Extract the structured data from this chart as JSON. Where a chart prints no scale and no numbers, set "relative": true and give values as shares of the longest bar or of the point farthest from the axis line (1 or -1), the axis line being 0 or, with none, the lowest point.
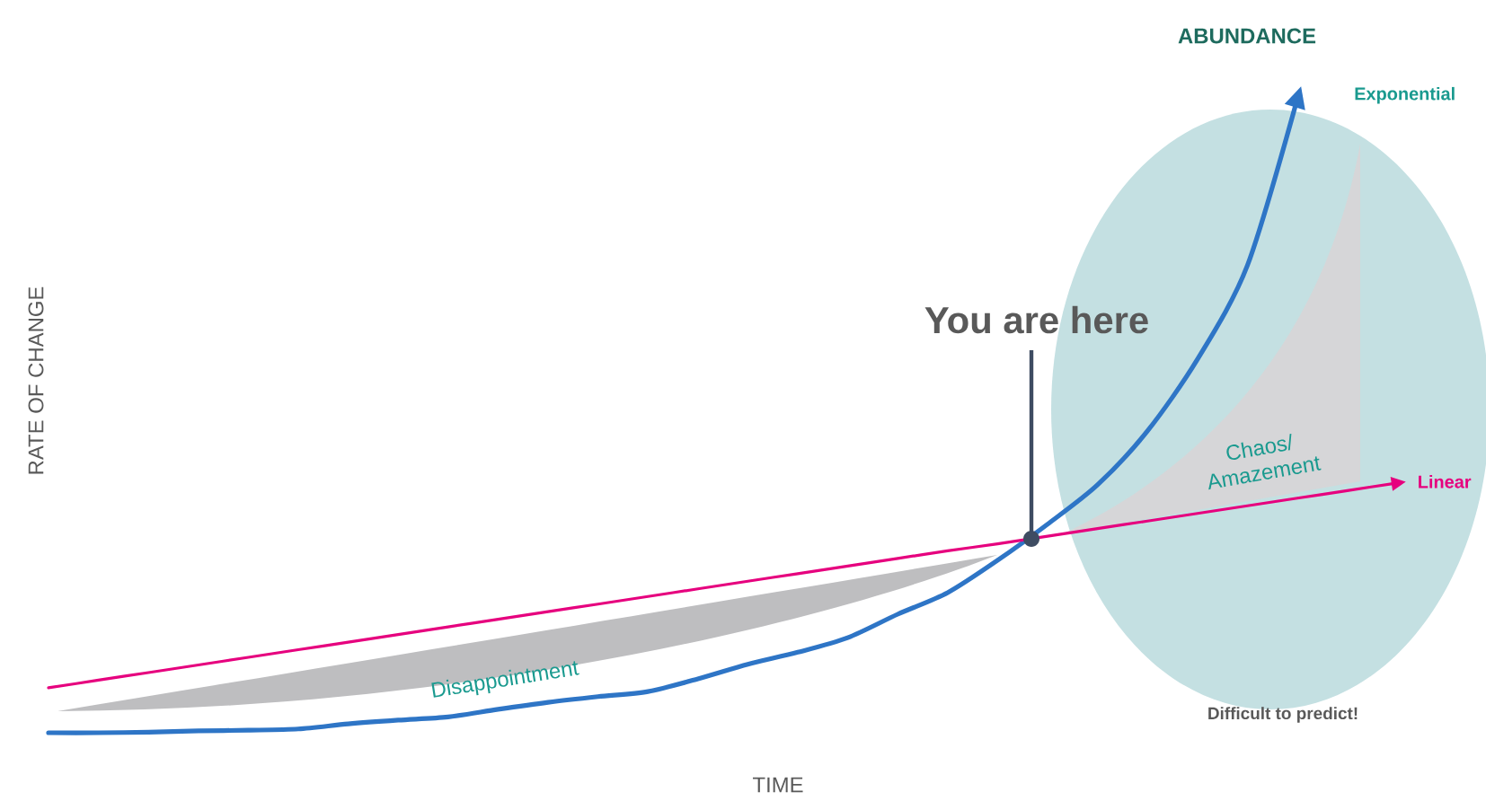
{
  "chart_data": {
    "type": "line",
    "relative": true,
    "xlabel": "TIME",
    "ylabel": "RATE OF CHANGE",
    "categories": [
      null,
      null,
      null,
      null,
      null,
      null,
      null,
      null,
      null,
      null,
      null,
      null,
      null,
      null,
      null,
      null,
      null,
      null,
      null,
      null,
      null,
      null,
      null,
      null,
      null,
      null,
      null,
      null
    ],
    "series": [
      {
        "name": "Exponential",
        "color": "#2e75c6",
        "values": [
          0,
          0,
          0.001,
          0.003,
          0.004,
          0.006,
          0.014,
          0.02,
          0.025,
          0.037,
          0.048,
          0.057,
          0.065,
          0.085,
          0.108,
          0.127,
          0.15,
          0.187,
          0.221,
          0.272,
          0.329,
          0.391,
          0.476,
          0.589,
          0.737,
          1,
          null,
          null
        ]
      },
      {
        "name": "Linear",
        "color": "#e6007e",
        "type": "line",
        "values": [
          0.071,
          0.083,
          0.095,
          0.107,
          0.119,
          0.131,
          0.143,
          0.155,
          0.167,
          0.179,
          0.191,
          0.203,
          0.215,
          0.227,
          0.239,
          0.251,
          0.263,
          0.275,
          0.287,
          0.298,
          0.31,
          0.322,
          0.334,
          0.346,
          0.358,
          0.37,
          0.382,
          0.394
        ]
      }
    ],
    "annotations": [
      "ABUNDANCE",
      "You are here",
      "Chaos/ Amazement",
      "Disappointment",
      "Difficult to predict!"
    ]
  }
}
